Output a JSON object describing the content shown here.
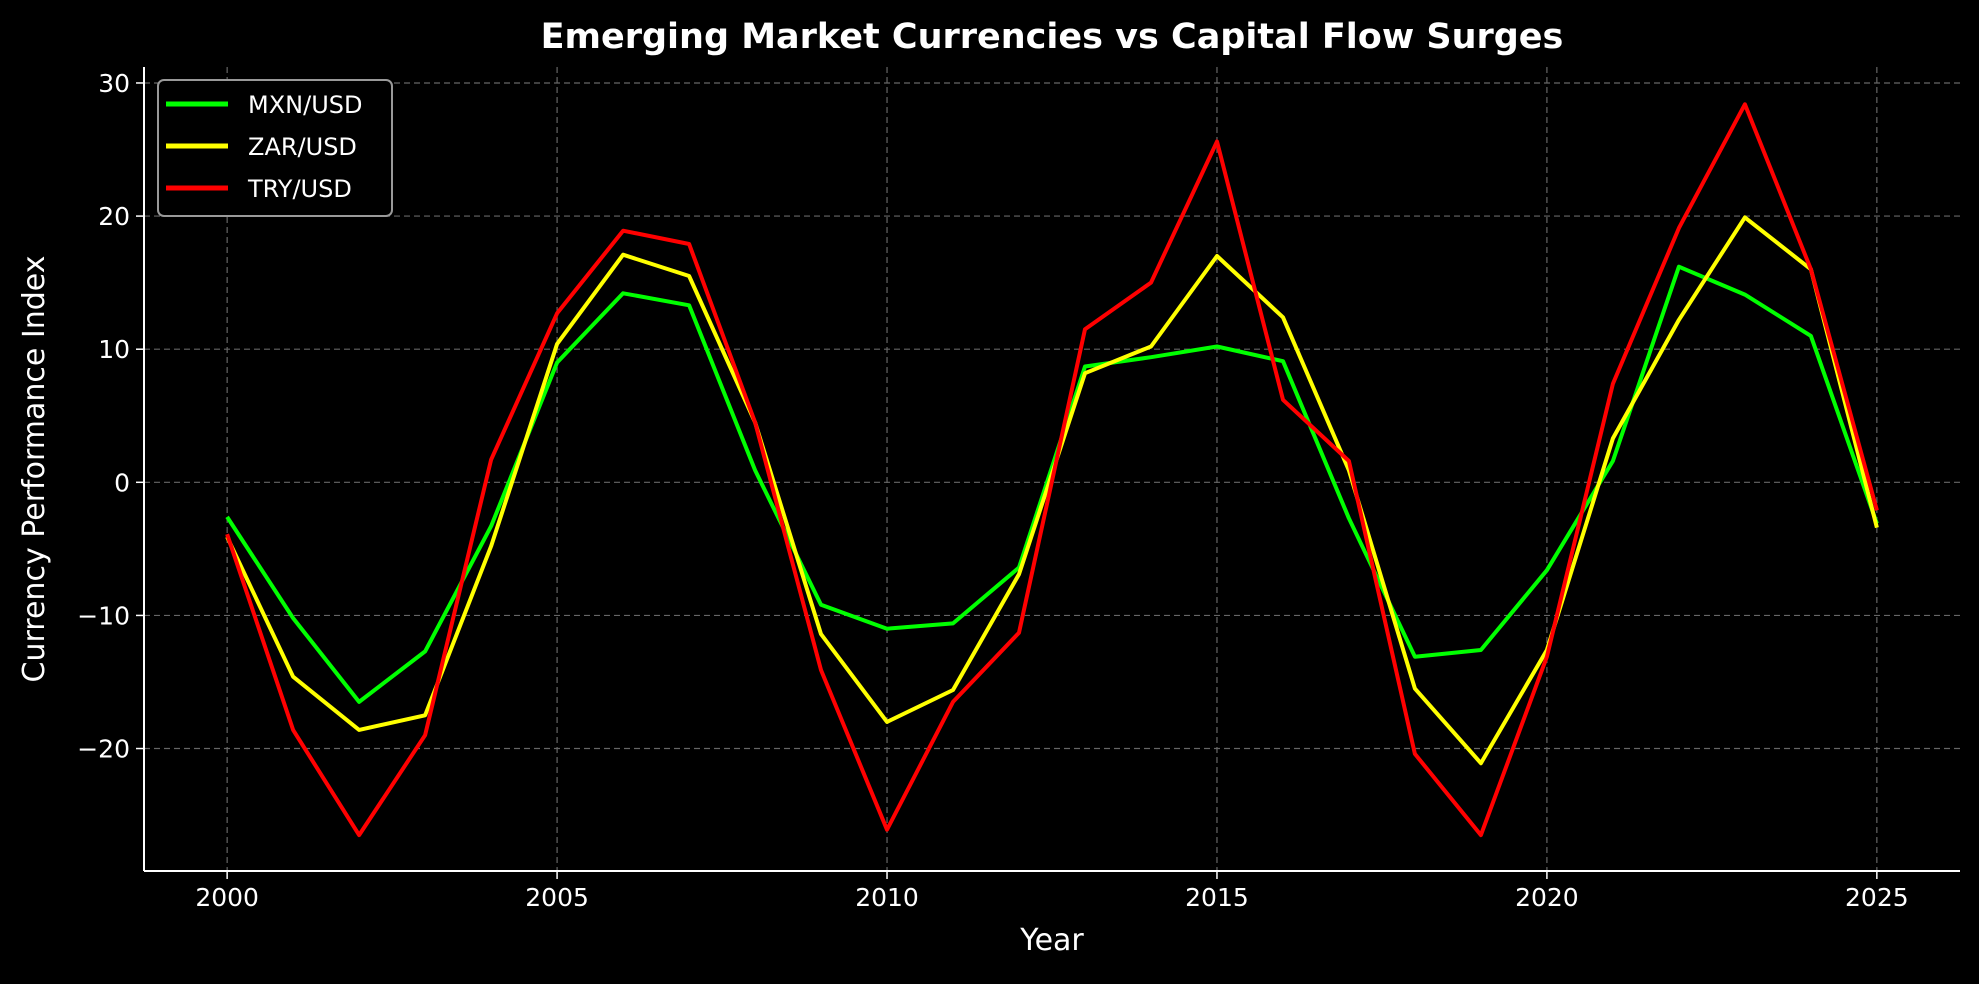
{
  "chart_data": {
    "type": "line",
    "title": "Emerging Market Currencies vs Capital Flow Surges",
    "xlabel": "Year",
    "ylabel": "Currency Performance Index",
    "xlim": [
      1998.74,
      2026.26
    ],
    "ylim": [
      -29.2,
      31.2
    ],
    "xticks": [
      2000,
      2005,
      2010,
      2015,
      2020,
      2025
    ],
    "yticks": [
      -20,
      -10,
      0,
      10,
      20,
      30
    ],
    "ytick_labels": [
      "−20",
      "−10",
      "0",
      "10",
      "20",
      "30"
    ],
    "grid": true,
    "legend_position": "top-left",
    "background": "#000000",
    "x": [
      2000,
      2001,
      2002,
      2003,
      2004,
      2005,
      2006,
      2007,
      2008,
      2009,
      2010,
      2011,
      2012,
      2013,
      2014,
      2015,
      2016,
      2017,
      2018,
      2019,
      2020,
      2021,
      2022,
      2023,
      2024,
      2025
    ],
    "series": [
      {
        "name": "MXN/USD",
        "color": "#00ff00",
        "values": [
          -2.6,
          -10.2,
          -16.5,
          -12.7,
          -3.3,
          9.0,
          14.2,
          13.3,
          0.9,
          -9.2,
          -11.0,
          -10.6,
          -6.4,
          8.7,
          9.4,
          10.2,
          9.1,
          -2.7,
          -13.1,
          -12.6,
          -6.6,
          1.6,
          16.2,
          14.1,
          11.0,
          -3.1
        ]
      },
      {
        "name": "ZAR/USD",
        "color": "#ffff00",
        "values": [
          -4.1,
          -14.6,
          -18.6,
          -17.5,
          -4.8,
          10.4,
          17.1,
          15.5,
          4.5,
          -11.4,
          -18.0,
          -15.6,
          -6.9,
          8.2,
          10.2,
          17.0,
          12.4,
          0.9,
          -15.5,
          -21.1,
          -12.6,
          3.3,
          12.2,
          19.9,
          16.0,
          -3.4
        ]
      },
      {
        "name": "TRY/USD",
        "color": "#ff0000",
        "values": [
          -3.9,
          -18.6,
          -26.5,
          -19.0,
          1.7,
          12.7,
          18.9,
          17.9,
          4.5,
          -14.1,
          -26.1,
          -16.5,
          -11.3,
          11.5,
          15.0,
          25.6,
          6.2,
          1.6,
          -20.4,
          -26.5,
          -13.1,
          7.4,
          19.1,
          28.4,
          16.0,
          -2.1
        ]
      }
    ]
  }
}
